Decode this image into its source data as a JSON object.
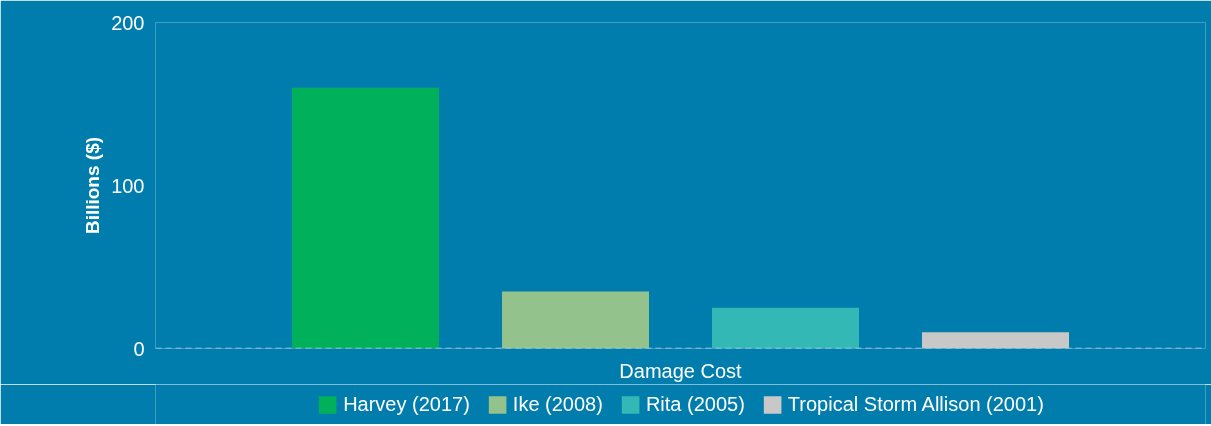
{
  "chart_data": {
    "type": "bar",
    "ylabel": "Billions ($)",
    "categories": [
      "Damage Cost"
    ],
    "series": [
      {
        "name": "Harvey (2017)",
        "color": "#00b05a",
        "values": [
          160
        ]
      },
      {
        "name": "Ike (2008)",
        "color": "#93c28d",
        "values": [
          35
        ]
      },
      {
        "name": "Rita (2005)",
        "color": "#33b8b5",
        "values": [
          25
        ]
      },
      {
        "name": "Tropical Storm Allison (2001)",
        "color": "#c8c8c8",
        "values": [
          10
        ]
      }
    ],
    "ylim": [
      0,
      200
    ],
    "yticks": [
      0,
      100,
      200
    ],
    "grid": false,
    "legend": "bottom",
    "ref_lines": [
      {
        "axis": "y",
        "value": 0,
        "label": null,
        "color": "#a9d4e8",
        "line_style": "dashed"
      }
    ]
  }
}
